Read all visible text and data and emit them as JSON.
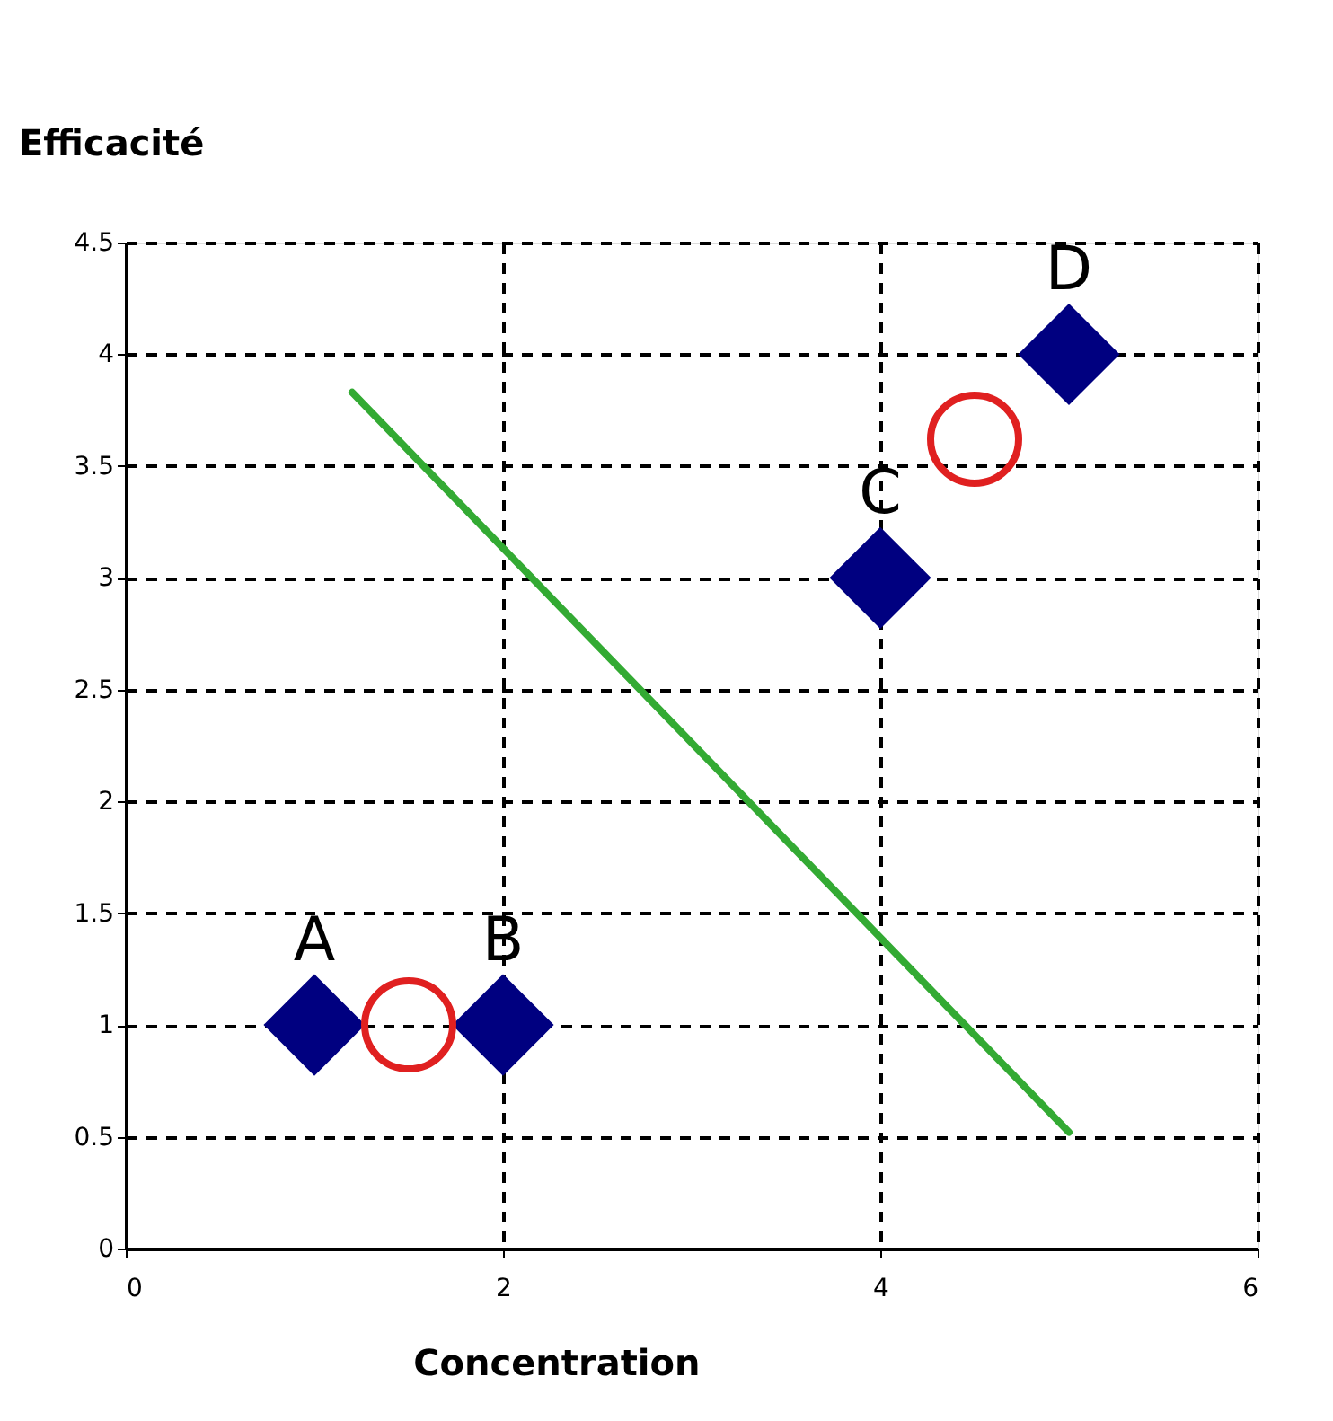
{
  "chart_data": {
    "type": "scatter",
    "xlabel": "Concentration",
    "ylabel": "Efficacité",
    "xlim": [
      0,
      6
    ],
    "xticks": [
      0,
      2,
      4,
      6
    ],
    "ylim": [
      0,
      4.5
    ],
    "yticks": [
      0,
      0.5,
      1,
      1.5,
      2,
      2.5,
      3,
      3.5,
      4,
      4.5
    ],
    "grid": true,
    "series": [
      {
        "marker": "diamond",
        "color": "#000080",
        "x": [
          1,
          2,
          4,
          5
        ],
        "values": [
          1,
          1,
          3,
          4
        ]
      },
      {
        "type": "line",
        "line_style": "solid",
        "color": "#33aa33",
        "x": [
          1.2,
          5
        ],
        "values": [
          3.83,
          0.52
        ]
      },
      {
        "marker": "circle",
        "color": "#e02020",
        "x": [
          1.5,
          4.5
        ],
        "values": [
          1.0,
          3.62
        ]
      }
    ],
    "annotations": [
      {
        "text": "A",
        "x": 1,
        "y": 1
      },
      {
        "text": "B",
        "x": 2,
        "y": 1
      },
      {
        "text": "C",
        "x": 4,
        "y": 3
      },
      {
        "text": "D",
        "x": 5,
        "y": 4
      }
    ]
  }
}
